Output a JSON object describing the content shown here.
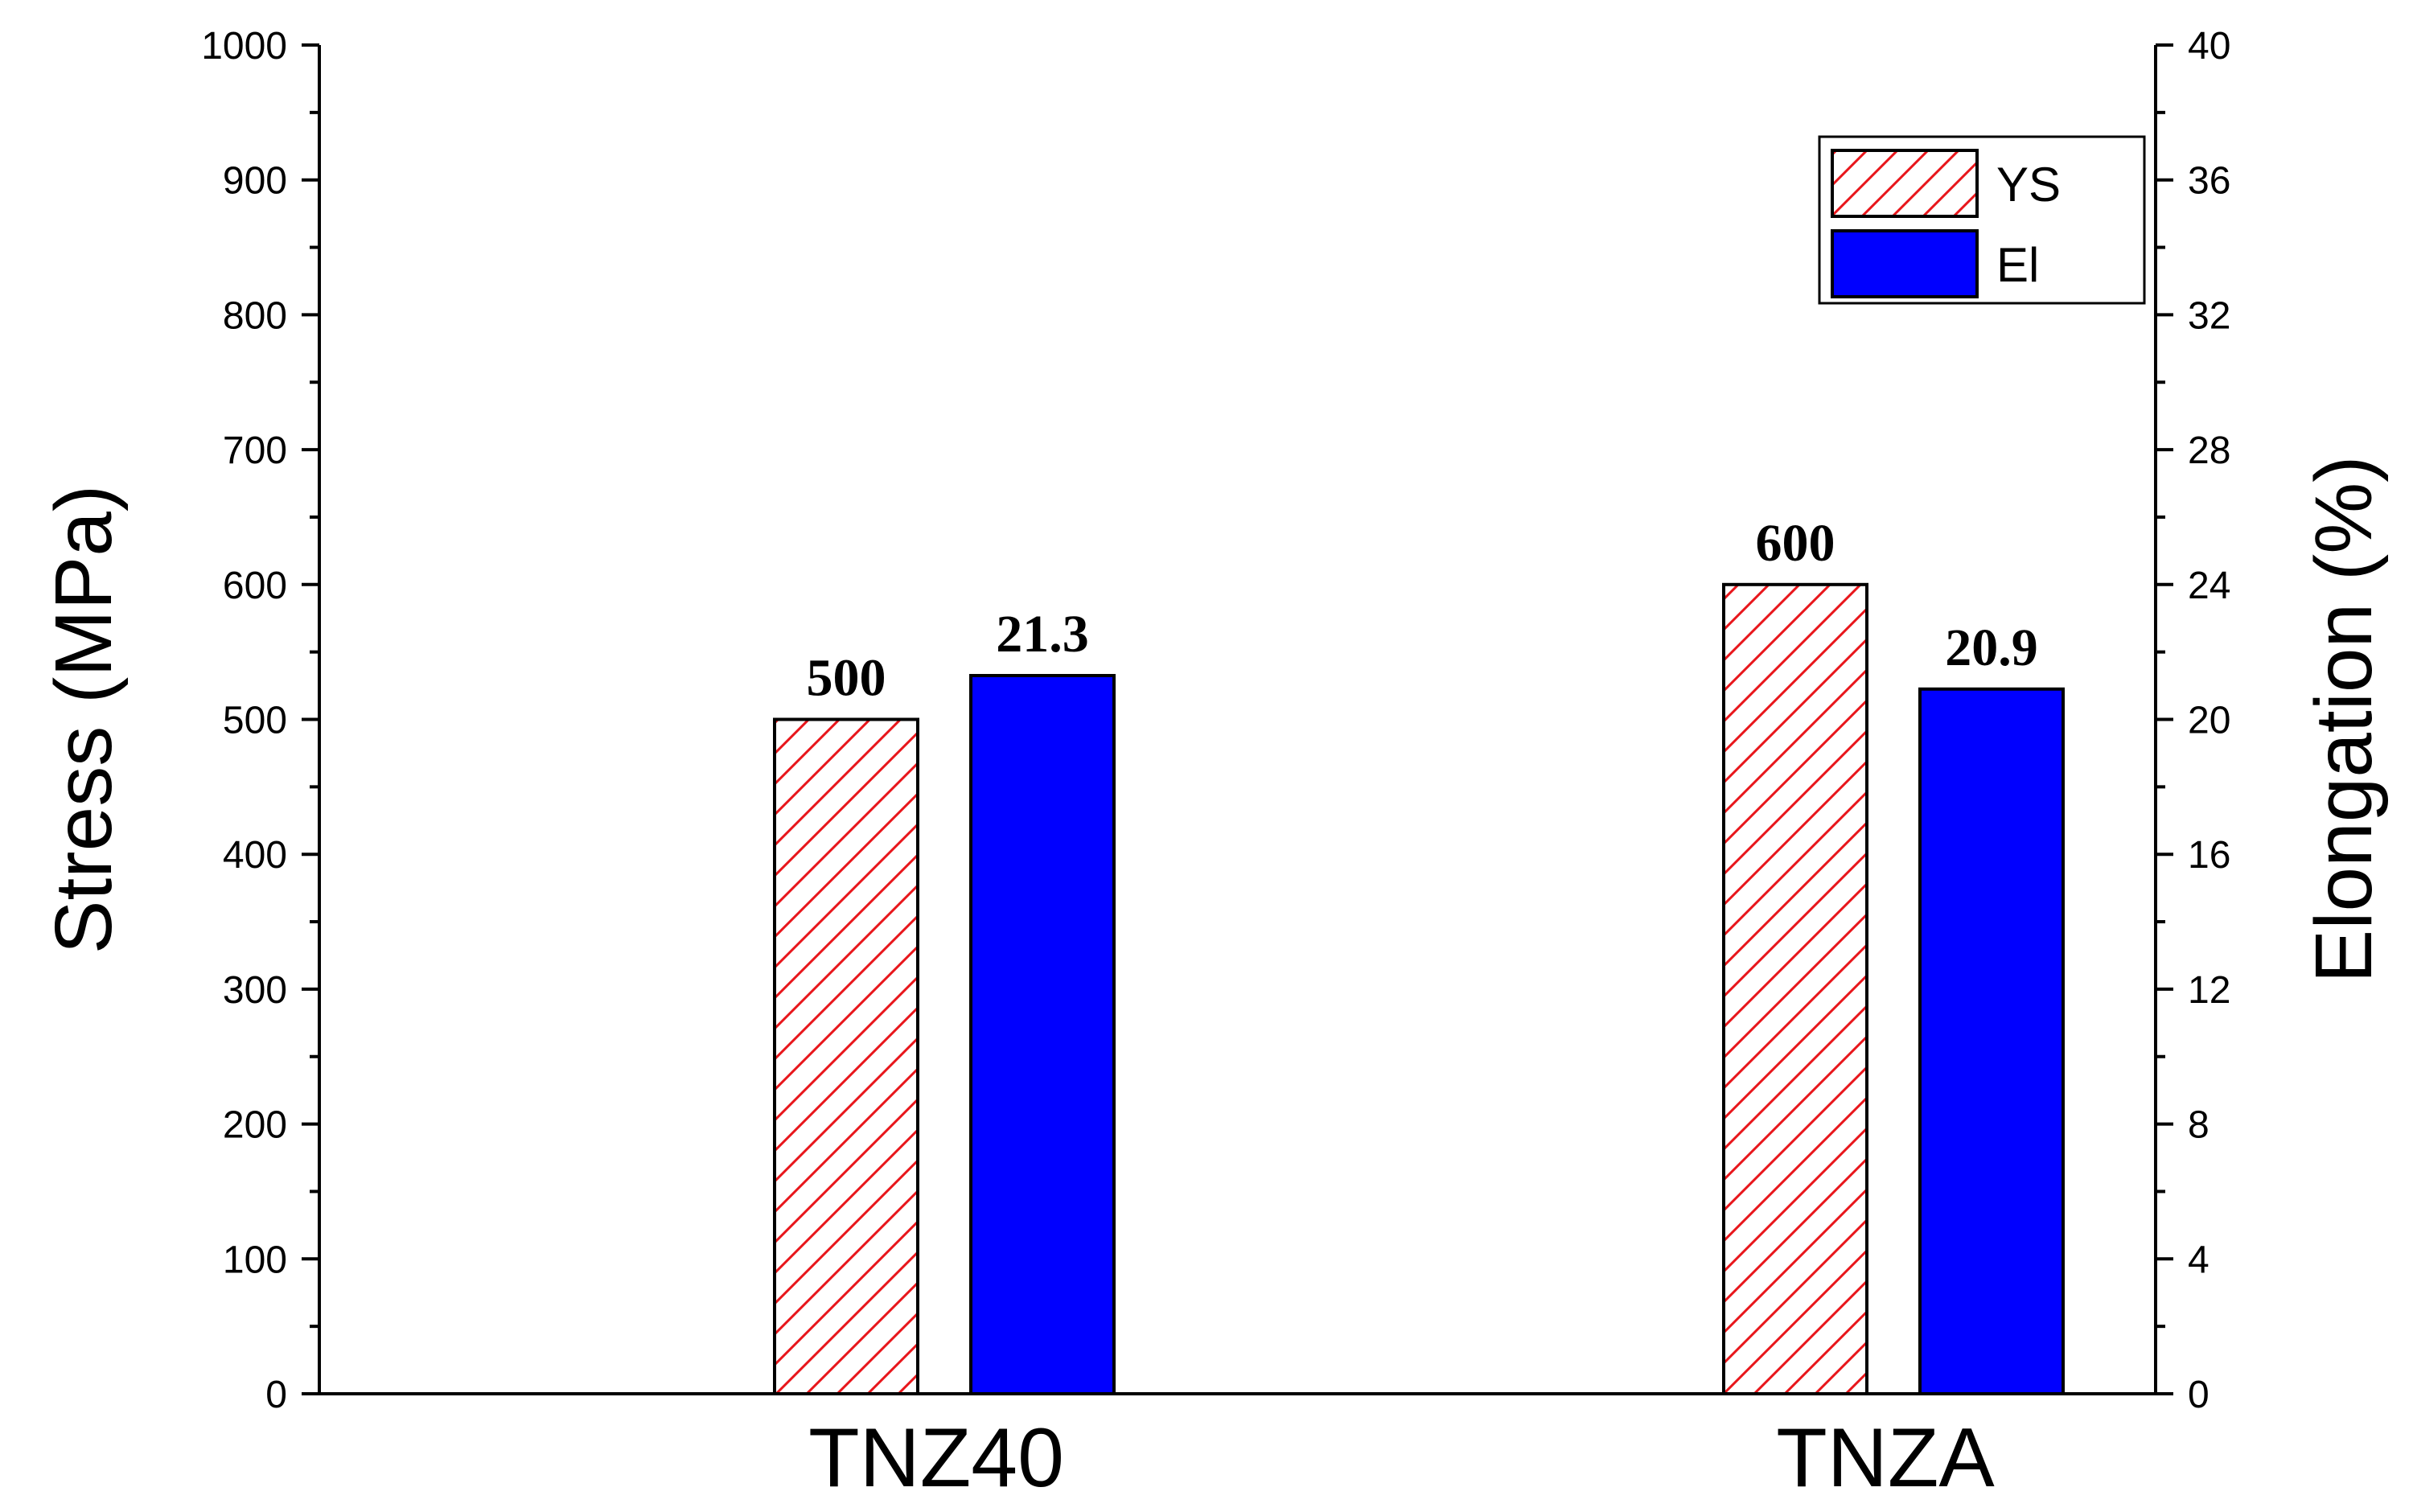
{
  "chart_data": {
    "type": "bar",
    "categories": [
      "TNZ40",
      "TNZA"
    ],
    "series": [
      {
        "name": "YS",
        "axis": "left",
        "values": [
          500,
          600
        ],
        "labels": [
          "500",
          "600"
        ],
        "fill": "hatch",
        "color": "#e8161b"
      },
      {
        "name": "El",
        "axis": "right",
        "values": [
          21.3,
          20.9
        ],
        "labels": [
          "21.3",
          "20.9"
        ],
        "fill": "solid",
        "color": "#0000ff"
      }
    ],
    "ylabel": "Stress (MPa)",
    "ylim": [
      0,
      1000
    ],
    "yticks": [
      "0",
      "100",
      "200",
      "300",
      "400",
      "500",
      "600",
      "700",
      "800",
      "900",
      "1000"
    ],
    "y2label": "Elongation (%)",
    "y2lim": [
      0,
      40
    ],
    "y2ticks": [
      "0",
      "4",
      "8",
      "12",
      "16",
      "20",
      "24",
      "28",
      "32",
      "36",
      "40"
    ],
    "grid": false,
    "legend": "top-right"
  }
}
